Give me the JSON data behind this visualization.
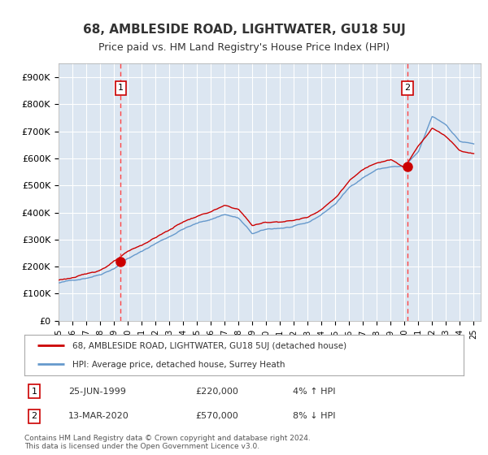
{
  "title": "68, AMBLESIDE ROAD, LIGHTWATER, GU18 5UJ",
  "subtitle": "Price paid vs. HM Land Registry's House Price Index (HPI)",
  "legend_line1": "68, AMBLESIDE ROAD, LIGHTWATER, GU18 5UJ (detached house)",
  "legend_line2": "HPI: Average price, detached house, Surrey Heath",
  "footnote": "Contains HM Land Registry data © Crown copyright and database right 2024.\nThis data is licensed under the Open Government Licence v3.0.",
  "annotation1_label": "1",
  "annotation1_date": "25-JUN-1999",
  "annotation1_price": "£220,000",
  "annotation1_hpi": "4% ↑ HPI",
  "annotation2_label": "2",
  "annotation2_date": "13-MAR-2020",
  "annotation2_price": "£570,000",
  "annotation2_hpi": "8% ↓ HPI",
  "sale1_year": 1999.49,
  "sale1_value": 220000,
  "sale2_year": 2020.19,
  "sale2_value": 570000,
  "red_color": "#cc0000",
  "blue_color": "#6699cc",
  "bg_color": "#dce6f1",
  "grid_color": "#ffffff",
  "vline_color": "#ff4444",
  "ylim": [
    0,
    950000
  ],
  "yticks": [
    0,
    100000,
    200000,
    300000,
    400000,
    500000,
    600000,
    700000,
    800000,
    900000
  ],
  "ytick_labels": [
    "£0",
    "£100K",
    "£200K",
    "£300K",
    "£400K",
    "£500K",
    "£600K",
    "£700K",
    "£800K",
    "£900K"
  ],
  "hpi_years": [
    1995,
    1996,
    1997,
    1998,
    1999,
    2000,
    2001,
    2002,
    2003,
    2004,
    2005,
    2006,
    2007,
    2008,
    2009,
    2010,
    2011,
    2012,
    2013,
    2014,
    2015,
    2016,
    2017,
    2018,
    2019,
    2020,
    2021,
    2022,
    2023,
    2024,
    2025
  ],
  "hpi_values": [
    140000,
    148000,
    160000,
    175000,
    200000,
    238000,
    262000,
    292000,
    318000,
    348000,
    367000,
    382000,
    402000,
    388000,
    328000,
    342000,
    347000,
    352000,
    362000,
    393000,
    433000,
    492000,
    532000,
    562000,
    572000,
    572000,
    622000,
    752000,
    722000,
    662000,
    652000
  ],
  "red_years": [
    1995,
    1996,
    1997,
    1998,
    1999,
    2000,
    2001,
    2002,
    2003,
    2004,
    2005,
    2006,
    2007,
    2008,
    2009,
    2010,
    2011,
    2012,
    2013,
    2014,
    2015,
    2016,
    2017,
    2018,
    2019,
    2020,
    2021,
    2022,
    2023,
    2024,
    2025
  ],
  "red_values": [
    150000,
    160000,
    170000,
    188000,
    220000,
    252000,
    275000,
    305000,
    332000,
    363000,
    383000,
    400000,
    420000,
    407000,
    347000,
    358000,
    363000,
    368000,
    380000,
    413000,
    455000,
    518000,
    558000,
    588000,
    603000,
    570000,
    650000,
    718000,
    688000,
    638000,
    628000
  ]
}
